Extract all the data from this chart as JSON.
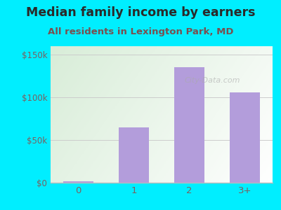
{
  "categories": [
    "0",
    "1",
    "2",
    "3+"
  ],
  "values": [
    2000,
    65000,
    135000,
    106000
  ],
  "bar_color": "#b39ddb",
  "title": "Median family income by earners",
  "subtitle": "All residents in Lexington Park, MD",
  "title_color": "#2a2a2a",
  "subtitle_color": "#7a4f4f",
  "background_color": "#00eeff",
  "yticks": [
    0,
    50000,
    100000,
    150000
  ],
  "ytick_labels": [
    "$0",
    "$50k",
    "$100k",
    "$150k"
  ],
  "ylim": [
    0,
    160000
  ],
  "tick_color": "#7a6060",
  "grid_color": "#cccccc",
  "title_fontsize": 12.5,
  "subtitle_fontsize": 9.5,
  "watermark": "City-Data.com",
  "plot_bg_color_top_left": "#d8edd8",
  "plot_bg_color_right": "#f5f5f5"
}
